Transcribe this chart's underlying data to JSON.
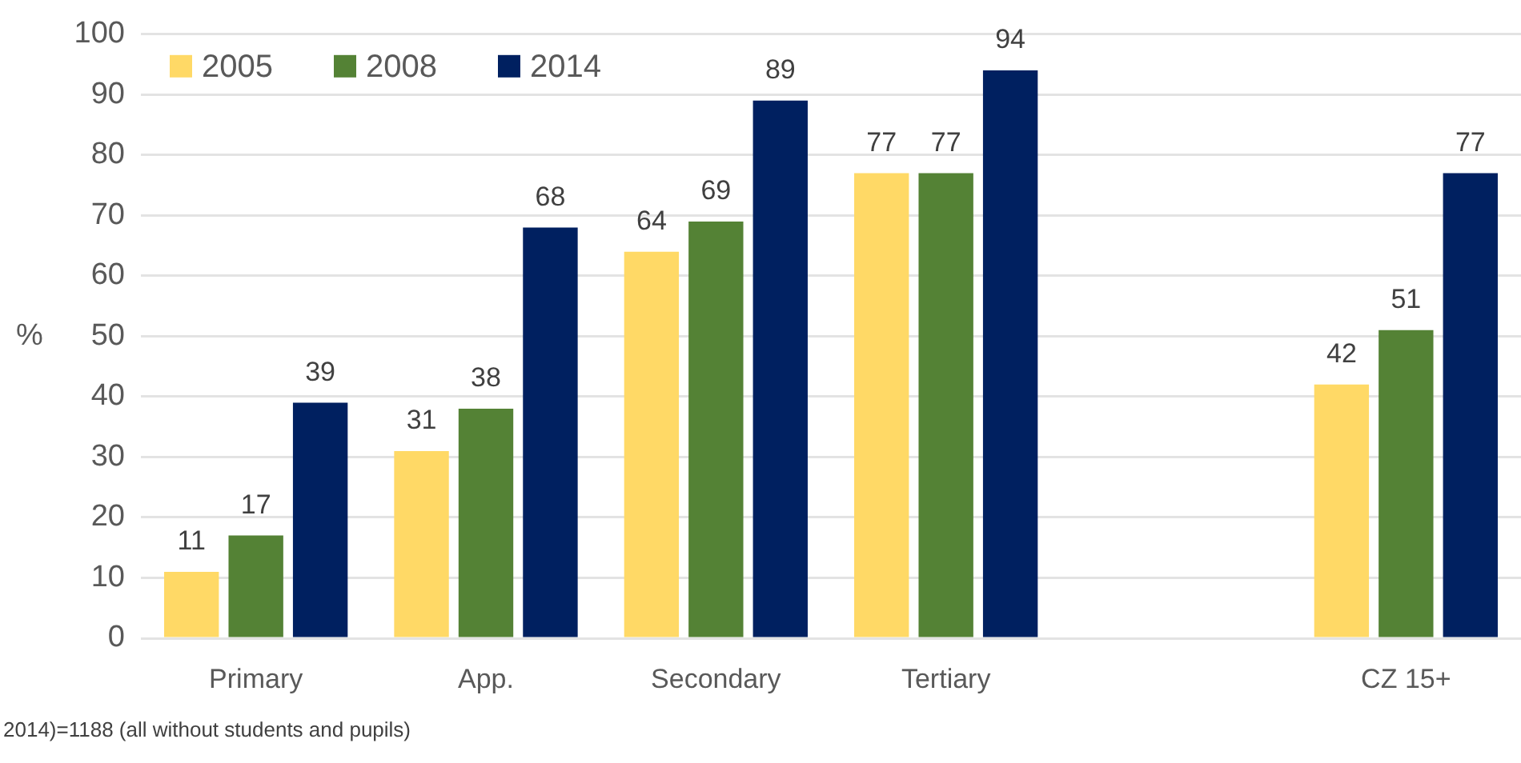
{
  "chart_data": {
    "type": "bar",
    "categories": [
      "Primary",
      "App.",
      "Secondary",
      "Tertiary",
      null,
      "CZ 15+"
    ],
    "series": [
      {
        "name": "2005",
        "color": "#ffd966",
        "values": [
          11,
          31,
          64,
          77,
          null,
          42
        ]
      },
      {
        "name": "2008",
        "color": "#548235",
        "values": [
          17,
          38,
          69,
          77,
          null,
          51
        ]
      },
      {
        "name": "2014",
        "color": "#002060",
        "values": [
          39,
          68,
          89,
          94,
          null,
          77
        ]
      }
    ],
    "ylabel": "%",
    "ylim": [
      0,
      100
    ],
    "yticks": [
      0,
      10,
      20,
      30,
      40,
      50,
      60,
      70,
      80,
      90,
      100
    ],
    "grid": "y",
    "legend": "top left",
    "data_labels": true,
    "annotations": [
      "2014)=1188 (all without students and pupils)"
    ]
  }
}
